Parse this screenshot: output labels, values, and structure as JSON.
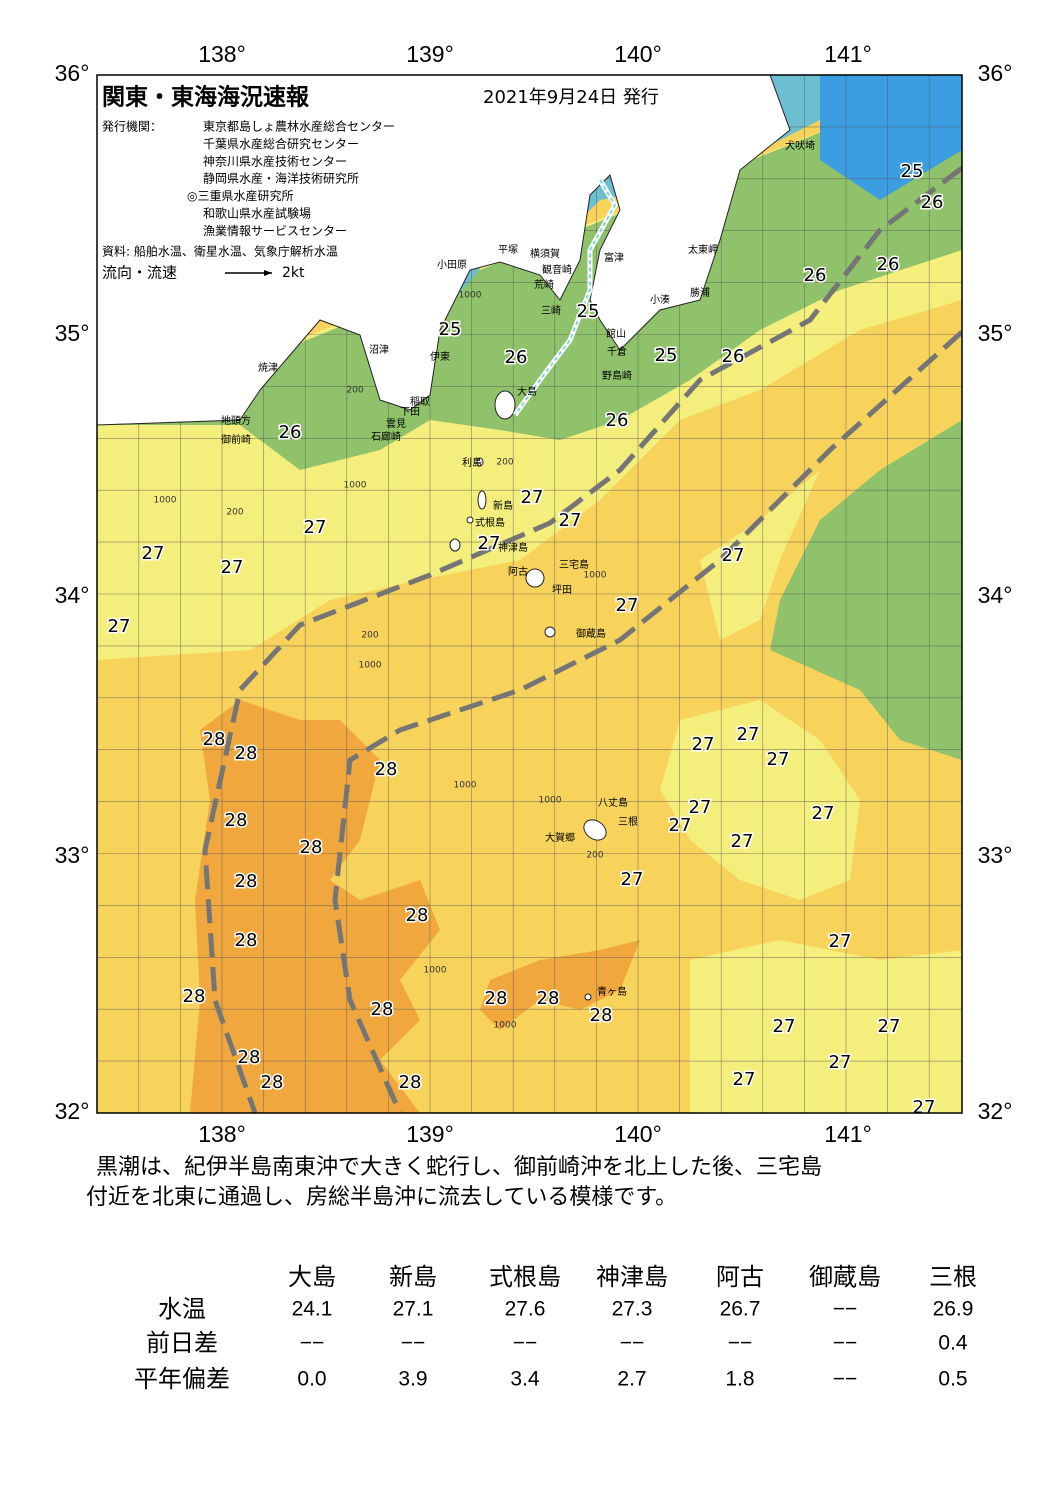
{
  "header": {
    "title": "関東・東海海況速報",
    "date": "2021年9月24日 発行",
    "issuer_label": "発行機関：",
    "issuers": [
      "東京都島しょ農林水産総合センター",
      "千葉県水産総合研究センター",
      "神奈川県水産技術センター",
      "静岡県水産・海洋技術研究所",
      "◎三重県水産研究所",
      "和歌山県水産試験場",
      "漁業情報サービスセンター"
    ],
    "sources": "資料: 船舶水温、衛星水温、気象庁解析水温",
    "legend_label": "流向・流速",
    "legend_speed": "2kt"
  },
  "map": {
    "lon_labels": [
      "138°",
      "139°",
      "140°",
      "141°"
    ],
    "lat_labels": [
      "36°",
      "35°",
      "34°",
      "33°",
      "32°"
    ],
    "temperature_labels": [
      "25",
      "26",
      "26",
      "26",
      "25",
      "25",
      "26",
      "25",
      "26",
      "26",
      "26",
      "27",
      "27",
      "27",
      "27",
      "27",
      "27",
      "27",
      "27",
      "27",
      "28",
      "28",
      "27",
      "27",
      "27",
      "28",
      "28",
      "27",
      "27",
      "27",
      "28",
      "27",
      "28",
      "27",
      "28",
      "27",
      "28",
      "28",
      "28",
      "28",
      "28",
      "28",
      "27",
      "27",
      "27",
      "28",
      "28",
      "27",
      "28",
      "27"
    ],
    "place_names": [
      "犬吠埼",
      "太東岬",
      "勝浦",
      "小湊",
      "平塚",
      "横須賀",
      "観音崎",
      "富津",
      "小田原",
      "荒崎",
      "三崎",
      "館山",
      "千倉",
      "野島崎",
      "沼津",
      "伊東",
      "焼津",
      "稲取",
      "下田",
      "雲見",
      "石廊崎",
      "地頭方",
      "御前崎",
      "大島",
      "利島",
      "新島",
      "式根島",
      "神津島",
      "三宅島",
      "阿古",
      "坪田",
      "御蔵島",
      "八丈島",
      "三根",
      "大賀郷",
      "青ヶ島"
    ],
    "depth_labels": [
      "1000",
      "200",
      "1000",
      "200",
      "1000",
      "200",
      "1000",
      "1000",
      "200",
      "1000",
      "1000",
      "200",
      "1000",
      "1000"
    ]
  },
  "description": [
    "黒潮は、紀伊半島南東沖で大きく蛇行し、御前崎沖を北上した後、三宅島",
    "付近を北東に通過し、房総半島沖に流去している模様です。"
  ],
  "table": {
    "columns": [
      "大島",
      "新島",
      "式根島",
      "神津島",
      "阿古",
      "御蔵島",
      "三根"
    ],
    "rows": [
      {
        "label": "水温",
        "values": [
          "24.1",
          "27.1",
          "27.6",
          "27.3",
          "26.7",
          "−−",
          "26.9"
        ]
      },
      {
        "label": "前日差",
        "values": [
          "−−",
          "−−",
          "−−",
          "−−",
          "−−",
          "−−",
          "0.4"
        ]
      },
      {
        "label": "平年偏差",
        "values": [
          "0.0",
          "3.9",
          "3.4",
          "2.7",
          "1.8",
          "−−",
          "0.5"
        ]
      }
    ]
  }
}
